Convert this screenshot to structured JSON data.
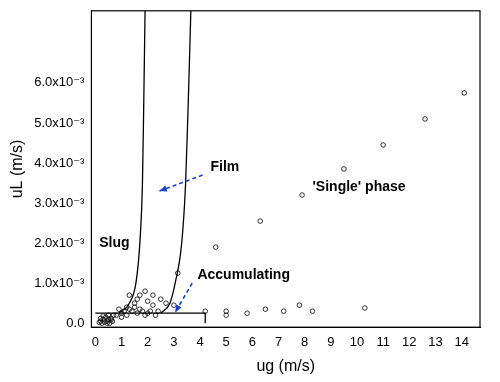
{
  "chart_data": {
    "type": "scatter",
    "x_label": "ug (m/s)",
    "y_label": "uL (m/s)",
    "xlim": [
      -0.15,
      14.7
    ],
    "ylim": [
      -0.0001,
      0.0078
    ],
    "xticks": [
      0,
      1,
      2,
      3,
      4,
      5,
      6,
      7,
      8,
      9,
      10,
      11,
      12,
      13,
      14
    ],
    "yticks": [
      {
        "value": 0,
        "label": "0.0"
      },
      {
        "value": 0.001,
        "label": "1.0x10⁻³"
      },
      {
        "value": 0.002,
        "label": "2.0x10⁻³"
      },
      {
        "value": 0.003,
        "label": "3.0x10⁻³"
      },
      {
        "value": 0.004,
        "label": "4.0x10⁻³"
      },
      {
        "value": 0.005,
        "label": "5.0x10⁻³"
      },
      {
        "value": 0.006,
        "label": "6.0x10⁻³"
      }
    ],
    "grid": false,
    "annotations": [
      "Slug",
      "Film",
      "'Single' phase",
      "Accumulating"
    ],
    "series": [
      {
        "type": "scatter",
        "marker": "circle",
        "color": "#000000",
        "x": [
          0.15,
          0.2,
          0.25,
          0.3,
          0.35,
          0.4,
          0.45,
          0.5,
          0.55,
          0.6,
          0.65,
          0.7,
          0.3,
          0.45,
          0.6,
          0.2,
          0.5,
          0.8,
          0.9,
          1.0,
          1.1,
          1.2,
          1.3,
          1.4,
          1.5,
          1.6,
          1.7,
          1.8,
          1.9,
          2.0,
          2.1,
          2.2,
          2.3,
          2.4,
          1.0,
          1.2,
          1.5,
          1.7,
          2.0,
          2.2,
          1.3,
          1.6,
          1.9,
          2.5,
          2.7,
          3.0,
          3.15,
          4.2,
          5.0,
          5.0,
          5.8,
          6.5,
          7.2,
          7.8,
          8.3,
          10.3,
          4.6,
          6.3,
          7.9,
          9.5,
          11.0,
          12.6,
          14.1
        ],
        "values": [
          2e-05,
          5e-05,
          0.0,
          0.0001,
          3e-05,
          0.00015,
          5e-05,
          0.0001,
          0.0,
          0.00012,
          5e-05,
          0.0002,
          0.00018,
          0.0,
          8e-05,
          0.00012,
          0.0002,
          0.0002,
          0.00035,
          0.00025,
          0.0003,
          0.0002,
          0.00035,
          0.0003,
          0.0004,
          0.00025,
          0.00035,
          0.0003,
          0.0002,
          0.00025,
          0.0003,
          0.00045,
          0.0002,
          0.0003,
          0.00015,
          0.0004,
          0.0005,
          0.0007,
          0.00055,
          0.0007,
          0.0007,
          0.0006,
          0.0008,
          0.0006,
          0.0005,
          0.00045,
          0.00125,
          0.0003,
          0.0003,
          0.0002,
          0.00025,
          0.00035,
          0.0003,
          0.00045,
          0.0003,
          0.00038,
          0.0019,
          0.00255,
          0.0032,
          0.00385,
          0.00445,
          0.0051,
          0.00575
        ]
      },
      {
        "type": "line",
        "color": "#000000",
        "x": [
          0.9,
          1.3,
          1.55,
          1.7,
          1.8,
          1.85,
          1.9
        ],
        "values": [
          0.00025,
          0.0005,
          0.001,
          0.002,
          0.0035,
          0.0055,
          0.0078
        ]
      },
      {
        "type": "line",
        "color": "#000000",
        "x": [
          2.5,
          2.85,
          3.05,
          3.3,
          3.45,
          3.55,
          3.65
        ],
        "values": [
          0.00025,
          0.0005,
          0.001,
          0.002,
          0.0035,
          0.0055,
          0.0078
        ]
      },
      {
        "type": "line",
        "color": "#000000",
        "x": [
          0,
          4.2,
          4.2
        ],
        "values": [
          0.00025,
          0.00025,
          0
        ]
      }
    ]
  }
}
